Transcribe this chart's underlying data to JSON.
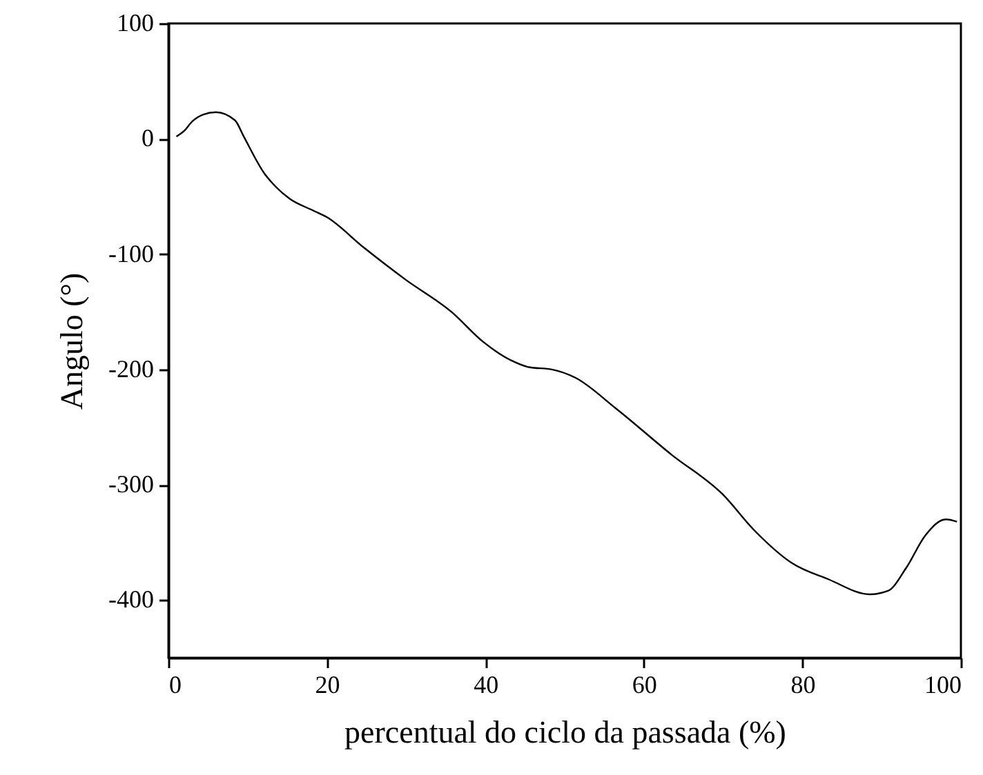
{
  "chart_data": {
    "type": "line",
    "xlabel": "percentual do ciclo da passada (%)",
    "ylabel": "Angulo (°)",
    "xlim": [
      0,
      100
    ],
    "xticks": [
      0,
      20,
      40,
      60,
      80,
      100
    ],
    "ylim": [
      -450,
      100
    ],
    "yticks": [
      -400,
      -300,
      -200,
      -100,
      0,
      100
    ],
    "grid": false,
    "marker": "none",
    "line_style": "solid",
    "series": [
      {
        "color": "#000000",
        "x": [
          1,
          2,
          3,
          4.4,
          6,
          8.4,
          9.5,
          12.1,
          13.6,
          15.3,
          18.2,
          20,
          24.6,
          29.9,
          35.7,
          39.7,
          43.2,
          45.5,
          48.4,
          51.3,
          56.5,
          63.5,
          69.9,
          74,
          78.7,
          83.3,
          88.5,
          90.8,
          93.1,
          95.5,
          98.1,
          99.5
        ],
        "values": [
          2,
          7,
          15,
          21,
          23,
          16,
          2,
          -30,
          -42,
          -52,
          -62,
          -68,
          -94,
          -122,
          -150,
          -176,
          -192,
          -198,
          -200,
          -207,
          -234,
          -274,
          -308,
          -340,
          -368,
          -382,
          -395,
          -392,
          -372,
          -344,
          -330,
          -332
        ]
      }
    ]
  }
}
